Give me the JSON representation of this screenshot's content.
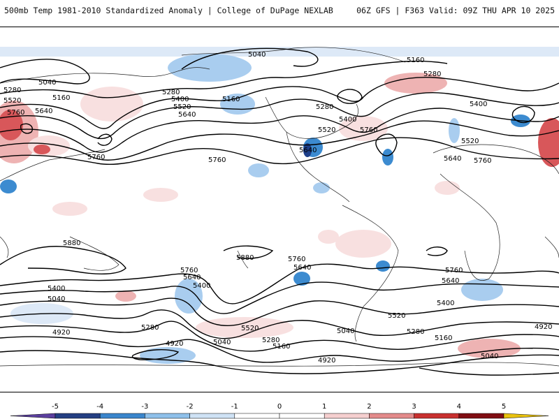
{
  "header": {
    "left": "500mb Temp 1981-2010 Standardized Anomaly | College of DuPage NEXLAB",
    "right": "06Z GFS | F363 Valid: 09Z THU APR 10 2025"
  },
  "colors": {
    "cold_strong": "#1d3f8a",
    "cold_mid": "#3c8bd0",
    "cold_light": "#a9cdef",
    "cold_faint": "#dde9f7",
    "warm_faint": "#f8e0e0",
    "warm_light": "#eeb3b3",
    "warm_mid": "#d8575a",
    "warm_strong": "#8e1015",
    "contour": "#000000",
    "coast": "#222222"
  },
  "contour_labels": [
    "5040",
    "5160",
    "5280",
    "5400",
    "5520",
    "5640",
    "5760",
    "5880",
    "4920"
  ],
  "colorbar": {
    "ticks": [
      "-5",
      "-4",
      "-3",
      "-2",
      "-1",
      "0",
      "1",
      "2",
      "3",
      "4",
      "5"
    ],
    "colors": [
      "#5b3f9e",
      "#243f82",
      "#3a85cc",
      "#8ec0ea",
      "#cfe2f5",
      "#ffffff",
      "#ffffff",
      "#f5cfcf",
      "#e38a8a",
      "#c8302f",
      "#7f0d12",
      "#e8c10e"
    ]
  }
}
